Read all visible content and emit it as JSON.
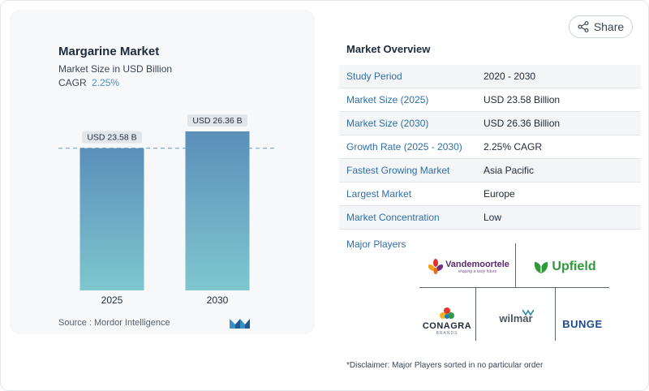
{
  "chart_data": {
    "type": "bar",
    "title": "Margarine Market",
    "subtitle": "Market Size in USD Billion",
    "cagr_label": "CAGR",
    "cagr_value": "2.25%",
    "categories": [
      "2025",
      "2030"
    ],
    "values": [
      23.58,
      26.36
    ],
    "data_labels": [
      "USD 23.58 B",
      "USD 26.36 B"
    ],
    "xlabel": "",
    "ylabel": "",
    "reference_line_value": 23.58
  },
  "source": "Source :  Mordor Intelligence",
  "share_label": "Share",
  "overview": {
    "title": "Market Overview",
    "rows": [
      {
        "key": "Study Period",
        "value": "2020 - 2030"
      },
      {
        "key": "Market Size (2025)",
        "value": "USD 23.58 Billion"
      },
      {
        "key": "Market Size (2030)",
        "value": "USD 26.36 Billion"
      },
      {
        "key": "Growth Rate (2025 - 2030)",
        "value": "2.25% CAGR"
      },
      {
        "key": "Fastest Growing Market",
        "value": "Asia Pacific"
      },
      {
        "key": "Largest Market",
        "value": "Europe"
      },
      {
        "key": "Market Concentration",
        "value": "Low"
      }
    ]
  },
  "players": {
    "label": "Major Players",
    "vandemoortele": "Vandemoortele",
    "vandemoortele_tag": "shaping a tasty future",
    "upfield": "Upfield",
    "conagra": "CONAGRA",
    "conagra_tag": "BRANDS",
    "wilmar": "wilmar",
    "bunge": "BUNGE"
  },
  "disclaimer": "*Disclaimer: Major Players sorted in no particular order",
  "colors": {
    "bar_top": "#5a8fba",
    "bar_bottom": "#7fc7cf",
    "accent": "#2f6fa8",
    "dashed": "#8fb4cc"
  }
}
